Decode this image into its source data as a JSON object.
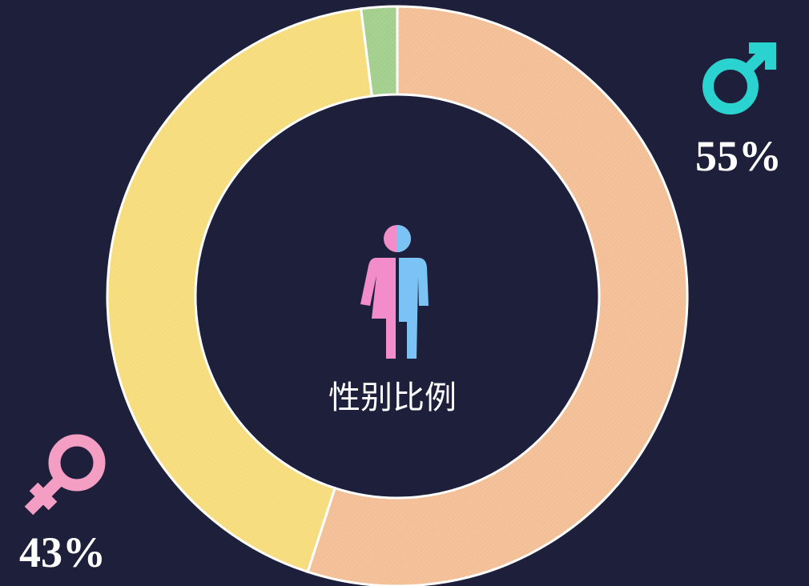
{
  "chart_data": {
    "type": "pie",
    "title": "性别比例",
    "values": [
      55,
      43,
      2
    ],
    "value_labels": [
      "55%",
      "43%",
      null
    ],
    "colors": [
      "#f3bf96",
      "#f6dc7c",
      "#a3cf8c"
    ]
  }
}
